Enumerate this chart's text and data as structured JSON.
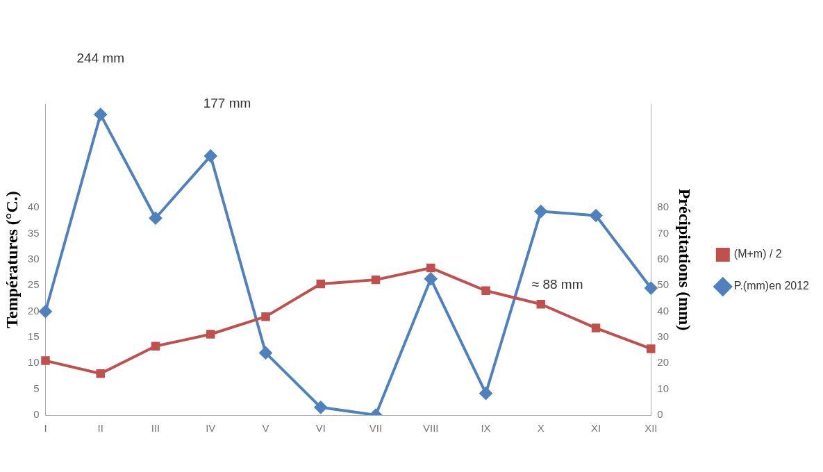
{
  "chart_data": {
    "type": "line",
    "categories": [
      "I",
      "II",
      "III",
      "IV",
      "V",
      "VI",
      "VII",
      "VIII",
      "IX",
      "X",
      "XI",
      "XII"
    ],
    "ylabel": "Températures (°C.)",
    "y2label": "Précipitations (mm)",
    "ylim": [
      0,
      60
    ],
    "yticks": [
      0,
      5,
      10,
      15,
      20,
      25,
      30,
      35,
      40
    ],
    "y2lim": [
      0,
      120
    ],
    "y2ticks": [
      0,
      10,
      20,
      30,
      40,
      50,
      60,
      70,
      80
    ],
    "series": [
      {
        "name": "(M+m) / 2",
        "color": "#c0504d",
        "marker": "square",
        "values": [
          10.5,
          8,
          13.3,
          15.6,
          19,
          25.3,
          26.1,
          28.4,
          24,
          21.4,
          16.8,
          12.8
        ]
      },
      {
        "name": "P.(mm)en 2012",
        "color": "#4f81bd",
        "marker": "diamond",
        "axis": "y2",
        "values": [
          40,
          116,
          76,
          100,
          24,
          3,
          0,
          52.6,
          8.4,
          78.6,
          77,
          49
        ]
      }
    ],
    "annotations": [
      "244 mm",
      "177 mm",
      "≈ 88 mm"
    ],
    "legend": "right",
    "grid": false
  }
}
